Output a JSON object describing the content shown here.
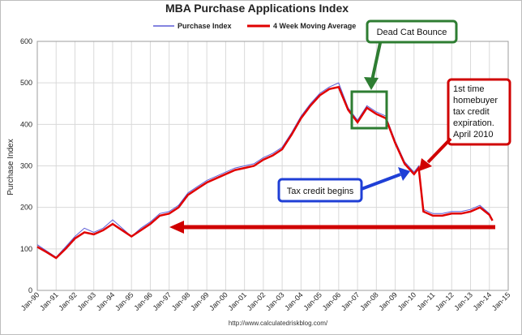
{
  "chart_data": {
    "type": "line",
    "title": "MBA Purchase Applications Index",
    "ylabel": "Purchase Index",
    "xlabel": "",
    "ylim": [
      0,
      600
    ],
    "yticks": [
      0,
      100,
      200,
      300,
      400,
      500,
      600
    ],
    "x_range": [
      "1990-01",
      "2015-01"
    ],
    "x_tick_labels": [
      "Jan-90",
      "Jan-91",
      "Jan-92",
      "Jan-93",
      "Jan-94",
      "Jan-95",
      "Jan-96",
      "Jan-97",
      "Jan-98",
      "Jan-99",
      "Jan-00",
      "Jan-01",
      "Jan-02",
      "Jan-03",
      "Jan-04",
      "Jan-05",
      "Jan-06",
      "Jan-07",
      "Jan-08",
      "Jan-09",
      "Jan-10",
      "Jan-11",
      "Jan-12",
      "Jan-13",
      "Jan-14",
      "Jan-15"
    ],
    "grid": true,
    "legend_position": "top",
    "series": [
      {
        "name": "Purchase Index",
        "color": "#5b5bd6",
        "x": [
          "1990-01",
          "1990-07",
          "1991-01",
          "1991-07",
          "1992-01",
          "1992-07",
          "1993-01",
          "1993-07",
          "1994-01",
          "1994-07",
          "1995-01",
          "1995-07",
          "1996-01",
          "1996-07",
          "1997-01",
          "1997-07",
          "1998-01",
          "1998-07",
          "1999-01",
          "1999-07",
          "2000-01",
          "2000-07",
          "2001-01",
          "2001-07",
          "2002-01",
          "2002-07",
          "2003-01",
          "2003-07",
          "2004-01",
          "2004-07",
          "2005-01",
          "2005-07",
          "2006-01",
          "2006-07",
          "2007-01",
          "2007-07",
          "2008-01",
          "2008-07",
          "2009-01",
          "2009-07",
          "2010-01",
          "2010-04",
          "2010-07",
          "2011-01",
          "2011-07",
          "2012-01",
          "2012-07",
          "2013-01",
          "2013-07",
          "2014-01",
          "2014-03"
        ],
        "values": [
          110,
          95,
          80,
          105,
          130,
          150,
          140,
          150,
          170,
          150,
          130,
          150,
          165,
          185,
          190,
          205,
          235,
          250,
          265,
          275,
          285,
          295,
          300,
          305,
          320,
          330,
          345,
          380,
          420,
          450,
          475,
          490,
          500,
          440,
          410,
          445,
          430,
          420,
          360,
          310,
          285,
          300,
          195,
          185,
          185,
          190,
          190,
          195,
          205,
          185,
          170
        ]
      },
      {
        "name": "4 Week Moving Average",
        "color": "#e00000",
        "x": [
          "1990-01",
          "1990-07",
          "1991-01",
          "1991-07",
          "1992-01",
          "1992-07",
          "1993-01",
          "1993-07",
          "1994-01",
          "1994-07",
          "1995-01",
          "1995-07",
          "1996-01",
          "1996-07",
          "1997-01",
          "1997-07",
          "1998-01",
          "1998-07",
          "1999-01",
          "1999-07",
          "2000-01",
          "2000-07",
          "2001-01",
          "2001-07",
          "2002-01",
          "2002-07",
          "2003-01",
          "2003-07",
          "2004-01",
          "2004-07",
          "2005-01",
          "2005-07",
          "2006-01",
          "2006-07",
          "2007-01",
          "2007-07",
          "2008-01",
          "2008-07",
          "2009-01",
          "2009-07",
          "2010-01",
          "2010-04",
          "2010-07",
          "2011-01",
          "2011-07",
          "2012-01",
          "2012-07",
          "2013-01",
          "2013-07",
          "2014-01",
          "2014-03"
        ],
        "values": [
          105,
          92,
          78,
          100,
          125,
          140,
          135,
          145,
          160,
          145,
          130,
          145,
          160,
          180,
          185,
          200,
          230,
          245,
          260,
          270,
          280,
          290,
          295,
          300,
          315,
          325,
          340,
          375,
          415,
          445,
          470,
          485,
          490,
          435,
          405,
          440,
          425,
          415,
          355,
          305,
          280,
          295,
          190,
          180,
          180,
          185,
          185,
          190,
          200,
          182,
          168
        ]
      }
    ],
    "annotations": [
      {
        "text": "Dead Cat Bounce",
        "border_color": "#2e7d32"
      },
      {
        "text": "1st time homebuyer tax credit expiration. April 2010",
        "border_color": "#d00000"
      },
      {
        "text": "Tax credit begins",
        "border_color": "#1f3fd6"
      }
    ],
    "source": "http://www.calculatedriskblog.com/"
  }
}
